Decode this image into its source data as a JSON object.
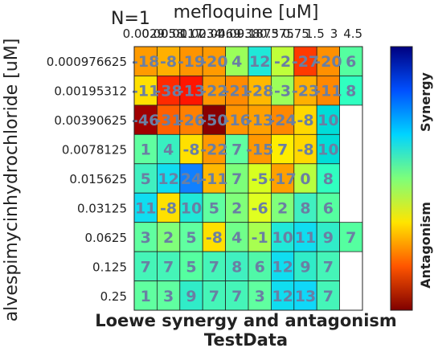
{
  "chart_data": {
    "type": "heatmap",
    "annotation": "N=1",
    "xlabel": "mefloquine [uM]",
    "ylabel": "alvespimycinhydrochloride [uM]",
    "title": "Loewe synergy and antagonism",
    "subtitle": "TestData",
    "x_categories": [
      "0.0029",
      "0.0058",
      "0.0117",
      "0.0234",
      "0.0469",
      "0.0938",
      "0.1875",
      "0.375",
      "0.75",
      "1.5",
      "3",
      "4.5"
    ],
    "y_categories": [
      "0.000976625",
      "0.00195312",
      "0.00390625",
      "0.0078125",
      "0.015625",
      "0.03125",
      "0.0625",
      "0.125",
      "0.25"
    ],
    "colorbar": {
      "top_label": "Synergy",
      "bottom_label": "Antagonism",
      "colors": [
        "#00007f",
        "#0050ff",
        "#00d4ff",
        "#7dff7a",
        "#ffe500",
        "#ff5500",
        "#7f0000"
      ]
    },
    "cells": [
      {
        "row": 0,
        "col": 0,
        "value": -18,
        "color": "#ff9b00"
      },
      {
        "row": 0,
        "col": 1,
        "value": -8,
        "color": "#ffb000"
      },
      {
        "row": 0,
        "col": 2,
        "value": -19,
        "color": "#ff9400"
      },
      {
        "row": 0,
        "col": 3,
        "value": -20,
        "color": "#ff9a00"
      },
      {
        "row": 0,
        "col": 4,
        "value": 4,
        "color": "#9aff5a"
      },
      {
        "row": 0,
        "col": 5,
        "value": 12,
        "color": "#20e8d8"
      },
      {
        "row": 0,
        "col": 6,
        "value": -2,
        "color": "#bfff3a"
      },
      {
        "row": 0,
        "col": 7,
        "value": -27,
        "color": "#ff3a00"
      },
      {
        "row": 0,
        "col": 8,
        "value": -20,
        "color": "#ff9000"
      },
      {
        "row": 0,
        "col": 9,
        "value": 6,
        "color": "#55ffa0"
      },
      {
        "row": 1,
        "col": 0,
        "value": -11,
        "color": "#ffe000"
      },
      {
        "row": 1,
        "col": 1,
        "value": -38,
        "color": "#ff2a00"
      },
      {
        "row": 1,
        "col": 2,
        "value": -13,
        "color": "#ff1500"
      },
      {
        "row": 1,
        "col": 3,
        "value": -22,
        "color": "#ff9800"
      },
      {
        "row": 1,
        "col": 4,
        "value": -21,
        "color": "#ff8a00"
      },
      {
        "row": 1,
        "col": 5,
        "value": -28,
        "color": "#ffb800"
      },
      {
        "row": 1,
        "col": 6,
        "value": -3,
        "color": "#9cff5a"
      },
      {
        "row": 1,
        "col": 7,
        "value": -23,
        "color": "#ffb000"
      },
      {
        "row": 1,
        "col": 8,
        "value": -11,
        "color": "#ff8800"
      },
      {
        "row": 1,
        "col": 9,
        "value": 8,
        "color": "#30ffc0"
      },
      {
        "row": 2,
        "col": 0,
        "value": -46,
        "color": "#a00000"
      },
      {
        "row": 2,
        "col": 1,
        "value": -31,
        "color": "#ff6000"
      },
      {
        "row": 2,
        "col": 2,
        "value": -26,
        "color": "#ff8000"
      },
      {
        "row": 2,
        "col": 3,
        "value": -50,
        "color": "#880000"
      },
      {
        "row": 2,
        "col": 4,
        "value": -16,
        "color": "#ff9400"
      },
      {
        "row": 2,
        "col": 5,
        "value": -13,
        "color": "#ffa000"
      },
      {
        "row": 2,
        "col": 6,
        "value": -24,
        "color": "#ff8800"
      },
      {
        "row": 2,
        "col": 7,
        "value": -8,
        "color": "#ffd800"
      },
      {
        "row": 2,
        "col": 8,
        "value": 10,
        "color": "#00ddd8"
      },
      {
        "row": 3,
        "col": 0,
        "value": 1,
        "color": "#60ffa0"
      },
      {
        "row": 3,
        "col": 1,
        "value": 4,
        "color": "#38f0c0"
      },
      {
        "row": 3,
        "col": 2,
        "value": -8,
        "color": "#ffe000"
      },
      {
        "row": 3,
        "col": 3,
        "value": -22,
        "color": "#ff9800"
      },
      {
        "row": 3,
        "col": 4,
        "value": 7,
        "color": "#60ffa0"
      },
      {
        "row": 3,
        "col": 5,
        "value": -15,
        "color": "#ff9800"
      },
      {
        "row": 3,
        "col": 6,
        "value": 7,
        "color": "#ffee00"
      },
      {
        "row": 3,
        "col": 7,
        "value": -8,
        "color": "#ffd800"
      },
      {
        "row": 3,
        "col": 8,
        "value": 10,
        "color": "#00ddd8"
      },
      {
        "row": 4,
        "col": 0,
        "value": 5,
        "color": "#40f0c0"
      },
      {
        "row": 4,
        "col": 1,
        "value": 12,
        "color": "#10ddf0"
      },
      {
        "row": 4,
        "col": 2,
        "value": 24,
        "color": "#1080ff"
      },
      {
        "row": 4,
        "col": 3,
        "value": -11,
        "color": "#ffb800"
      },
      {
        "row": 4,
        "col": 4,
        "value": 7,
        "color": "#7cff7a"
      },
      {
        "row": 4,
        "col": 5,
        "value": -5,
        "color": "#d8ff20"
      },
      {
        "row": 4,
        "col": 6,
        "value": -17,
        "color": "#ffa000"
      },
      {
        "row": 4,
        "col": 7,
        "value": 0,
        "color": "#b8ff40"
      },
      {
        "row": 4,
        "col": 8,
        "value": 8,
        "color": "#30ffc0"
      },
      {
        "row": 5,
        "col": 0,
        "value": 11,
        "color": "#10ddf0"
      },
      {
        "row": 5,
        "col": 1,
        "value": -8,
        "color": "#ffe000"
      },
      {
        "row": 5,
        "col": 2,
        "value": 10,
        "color": "#20e8d8"
      },
      {
        "row": 5,
        "col": 3,
        "value": 5,
        "color": "#60ffa0"
      },
      {
        "row": 5,
        "col": 4,
        "value": 2,
        "color": "#80ff7a"
      },
      {
        "row": 5,
        "col": 5,
        "value": -6,
        "color": "#e0ff20"
      },
      {
        "row": 5,
        "col": 6,
        "value": 2,
        "color": "#80ff7a"
      },
      {
        "row": 5,
        "col": 7,
        "value": 8,
        "color": "#40f0c0"
      },
      {
        "row": 5,
        "col": 8,
        "value": 6,
        "color": "#55ffa0"
      },
      {
        "row": 6,
        "col": 0,
        "value": 3,
        "color": "#60ffa0"
      },
      {
        "row": 6,
        "col": 1,
        "value": 2,
        "color": "#80ff7a"
      },
      {
        "row": 6,
        "col": 2,
        "value": 5,
        "color": "#60ffa0"
      },
      {
        "row": 6,
        "col": 3,
        "value": -8,
        "color": "#ffe000"
      },
      {
        "row": 6,
        "col": 4,
        "value": 4,
        "color": "#70ff8a"
      },
      {
        "row": 6,
        "col": 5,
        "value": -1,
        "color": "#a8ff50"
      },
      {
        "row": 6,
        "col": 6,
        "value": 10,
        "color": "#20e8d8"
      },
      {
        "row": 6,
        "col": 7,
        "value": 11,
        "color": "#10ddf0"
      },
      {
        "row": 6,
        "col": 8,
        "value": 9,
        "color": "#30ecc8"
      },
      {
        "row": 6,
        "col": 9,
        "value": 7,
        "color": "#55ffa0"
      },
      {
        "row": 7,
        "col": 0,
        "value": 7,
        "color": "#45f5b8"
      },
      {
        "row": 7,
        "col": 1,
        "value": 7,
        "color": "#45f5b8"
      },
      {
        "row": 7,
        "col": 2,
        "value": 5,
        "color": "#55ffa0"
      },
      {
        "row": 7,
        "col": 3,
        "value": 7,
        "color": "#45f5b8"
      },
      {
        "row": 7,
        "col": 4,
        "value": 8,
        "color": "#40f0c0"
      },
      {
        "row": 7,
        "col": 5,
        "value": 6,
        "color": "#50f8a8"
      },
      {
        "row": 7,
        "col": 6,
        "value": 12,
        "color": "#10ddf0"
      },
      {
        "row": 7,
        "col": 7,
        "value": 9,
        "color": "#30ecc8"
      },
      {
        "row": 7,
        "col": 8,
        "value": 7,
        "color": "#45f5b8"
      },
      {
        "row": 8,
        "col": 0,
        "value": 1,
        "color": "#60ffa0"
      },
      {
        "row": 8,
        "col": 1,
        "value": 3,
        "color": "#60ffa0"
      },
      {
        "row": 8,
        "col": 2,
        "value": 9,
        "color": "#30ecc8"
      },
      {
        "row": 8,
        "col": 3,
        "value": 7,
        "color": "#45f5b8"
      },
      {
        "row": 8,
        "col": 4,
        "value": 7,
        "color": "#45f5b8"
      },
      {
        "row": 8,
        "col": 5,
        "value": 3,
        "color": "#60ffa0"
      },
      {
        "row": 8,
        "col": 6,
        "value": 12,
        "color": "#10ddf0"
      },
      {
        "row": 8,
        "col": 7,
        "value": 13,
        "color": "#10d8f8"
      },
      {
        "row": 8,
        "col": 8,
        "value": 7,
        "color": "#45f5b8"
      }
    ]
  }
}
